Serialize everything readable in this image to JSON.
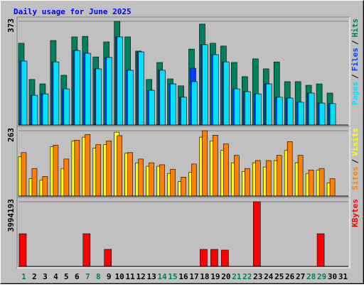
{
  "title": "Daily usage for June 2025",
  "chart_data": [
    {
      "type": "bar",
      "ylim": [
        0,
        373
      ],
      "yticks": [
        373
      ],
      "legend_separator": "/",
      "series": [
        {
          "name": "Hits",
          "color": "#00805c",
          "values": [
            294,
            164,
            148,
            304,
            179,
            317,
            319,
            245,
            299,
            373,
            317,
            266,
            164,
            225,
            166,
            141,
            273,
            363,
            294,
            284,
            225,
            174,
            238,
            202,
            227,
            156,
            156,
            143,
            148,
            115,
            0
          ]
        },
        {
          "name": "Files",
          "color": "#0040ff",
          "values": [
            230,
            107,
            112,
            227,
            130,
            268,
            258,
            202,
            243,
            317,
            197,
            263,
            125,
            197,
            148,
            100,
            204,
            289,
            253,
            227,
            130,
            120,
            112,
            148,
            100,
            97,
            82,
            115,
            79,
            77,
            0
          ]
        },
        {
          "name": "Pages",
          "color": "#00e0ff",
          "values": [
            230,
            107,
            112,
            227,
            130,
            268,
            258,
            202,
            243,
            317,
            197,
            263,
            125,
            197,
            148,
            100,
            156,
            289,
            253,
            227,
            130,
            120,
            112,
            148,
            100,
            97,
            82,
            115,
            79,
            77,
            0
          ]
        }
      ]
    },
    {
      "type": "bar",
      "ylim": [
        0,
        263
      ],
      "yticks": [
        263
      ],
      "legend_separator": "/",
      "series": [
        {
          "name": "Visits",
          "color": "#ffff00",
          "values": [
            158,
            70,
            64,
            199,
            111,
            222,
            237,
            193,
            207,
            257,
            172,
            134,
            120,
            120,
            91,
            58,
            96,
            237,
            222,
            184,
            134,
            99,
            134,
            117,
            143,
            184,
            134,
            91,
            105,
            53,
            0
          ]
        },
        {
          "name": "Sites",
          "color": "#ff8000",
          "values": [
            175,
            111,
            79,
            205,
            149,
            225,
            248,
            207,
            222,
            243,
            175,
            149,
            134,
            126,
            108,
            76,
            129,
            263,
            245,
            210,
            164,
            111,
            143,
            143,
            164,
            219,
            164,
            105,
            111,
            70,
            0
          ]
        }
      ]
    },
    {
      "type": "bar",
      "ylim": [
        0,
        3994193
      ],
      "yticks": [
        3994193
      ],
      "categories": [
        "1",
        "2",
        "3",
        "4",
        "5",
        "6",
        "7",
        "8",
        "9",
        "10",
        "11",
        "12",
        "13",
        "14",
        "15",
        "16",
        "17",
        "18",
        "19",
        "20",
        "21",
        "22",
        "23",
        "24",
        "25",
        "26",
        "27",
        "28",
        "29",
        "30",
        "31"
      ],
      "category_colors": [
        "#00805c",
        "#000000",
        "#000000",
        "#000000",
        "#000000",
        "#000000",
        "#00805c",
        "#00805c",
        "#000000",
        "#000000",
        "#000000",
        "#000000",
        "#000000",
        "#00805c",
        "#00805c",
        "#000000",
        "#000000",
        "#000000",
        "#000000",
        "#000000",
        "#00805c",
        "#00805c",
        "#000000",
        "#000000",
        "#000000",
        "#000000",
        "#000000",
        "#00805c",
        "#00805c",
        "#000000",
        "#000000"
      ],
      "series": [
        {
          "name": "KBytes",
          "color": "#ff0000",
          "values": [
            2019000,
            0,
            0,
            0,
            0,
            0,
            2019000,
            0,
            1053000,
            0,
            0,
            0,
            0,
            0,
            0,
            0,
            0,
            1053000,
            1053000,
            1009000,
            0,
            0,
            3994193,
            0,
            0,
            0,
            0,
            0,
            2019000,
            0,
            0
          ]
        }
      ]
    }
  ]
}
